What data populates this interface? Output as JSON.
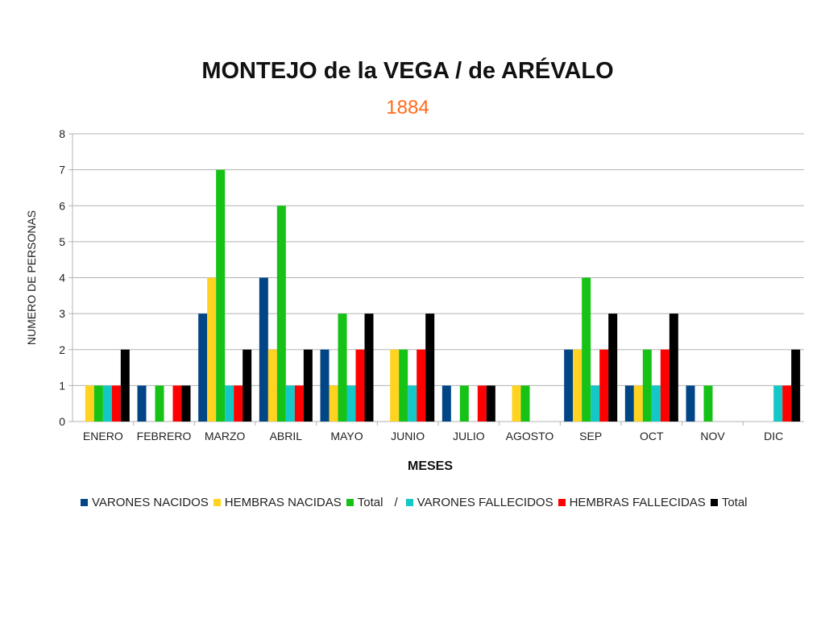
{
  "chart_data": {
    "type": "bar",
    "title": "MONTEJO de la VEGA / de ARÉVALO",
    "subtitle": "1884",
    "xlabel": "MESES",
    "ylabel": "NUMERO DE PERSONAS",
    "ylim": [
      0,
      8
    ],
    "yticks": [
      "0",
      "1",
      "2",
      "3",
      "4",
      "5",
      "6",
      "7",
      "8"
    ],
    "grid": true,
    "legend_position": "bottom",
    "legend_separator": "/",
    "categories": [
      "ENERO",
      "FEBRERO",
      "MARZO",
      "ABRIL",
      "MAYO",
      "JUNIO",
      "JULIO",
      "AGOSTO",
      "SEP",
      "OCT",
      "NOV",
      "DIC"
    ],
    "series": [
      {
        "name": "VARONES NACIDOS",
        "color": "#004586",
        "values": [
          0,
          1,
          3,
          4,
          2,
          0,
          1,
          0,
          2,
          1,
          1,
          0
        ]
      },
      {
        "name": "HEMBRAS NACIDAS",
        "color": "#ffd320",
        "values": [
          1,
          0,
          4,
          2,
          1,
          2,
          0,
          1,
          2,
          1,
          0,
          0
        ]
      },
      {
        "name": "Total",
        "color": "#15c215",
        "values": [
          1,
          1,
          7,
          6,
          3,
          2,
          1,
          1,
          4,
          2,
          1,
          0
        ]
      },
      {
        "name": "VARONES FALLECIDOS",
        "color": "#14c8c8",
        "values": [
          1,
          0,
          1,
          1,
          1,
          1,
          0,
          0,
          1,
          1,
          0,
          1
        ]
      },
      {
        "name": "HEMBRAS FALLECIDAS",
        "color": "#ff0000",
        "values": [
          1,
          1,
          1,
          1,
          2,
          2,
          1,
          0,
          2,
          2,
          0,
          1
        ]
      },
      {
        "name": "Total",
        "color": "#000000",
        "values": [
          2,
          1,
          2,
          2,
          3,
          3,
          1,
          0,
          3,
          3,
          0,
          2
        ]
      }
    ]
  }
}
